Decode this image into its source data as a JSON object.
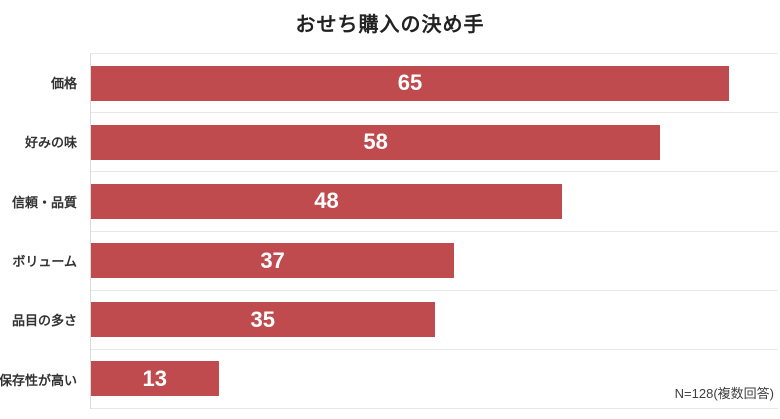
{
  "title": "おせち購入の決め手",
  "note": "N=128(複数回答)",
  "colors": {
    "bar": "#c04b4e",
    "bar_label": "#ffffff",
    "grid": "#e7e7e7",
    "axis": "#d9d9d9",
    "title": "#222222",
    "category": "#333333",
    "note": "#404040",
    "background": "#ffffff"
  },
  "chart_data": {
    "type": "bar",
    "orientation": "horizontal",
    "title": "おせち購入の決め手",
    "categories": [
      "価格",
      "好みの味",
      "信頼・品質",
      "ボリューム",
      "品目の多さ",
      "保存性が高い"
    ],
    "values": [
      65,
      58,
      48,
      37,
      35,
      13
    ],
    "xlabel": "",
    "ylabel": "",
    "xlim": [
      0,
      70
    ],
    "grid": "horizontal band separators only, no tick labels",
    "data_labels": "value inside bar, centered, white bold",
    "legend": "none",
    "annotations": [
      "N=128(複数回答)"
    ]
  }
}
